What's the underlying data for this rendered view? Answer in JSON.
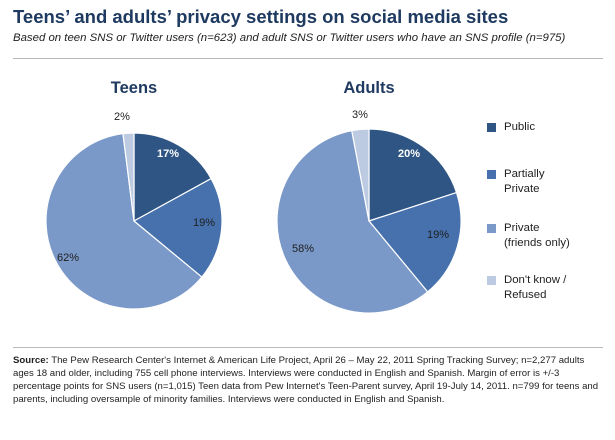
{
  "header": {
    "title": "Teens’ and adults’ privacy settings on social media sites",
    "subtitle": "Based on teen SNS or Twitter users (n=623) and adult SNS or Twitter users who have an SNS profile (n=975)"
  },
  "source": {
    "label": "Source:",
    "text": "The Pew Research Center's Internet & American Life Project, April 26 – May 22, 2011 Spring Tracking Survey; n=2,277 adults ages 18 and older, including 755 cell phone interviews. Interviews were conducted in English and Spanish. Margin of error is +/-3 percentage points for SNS users (n=1,015) Teen data from Pew Internet's Teen-Parent survey, April 19-July 14, 2011. n=799 for teens and parents, including oversample of minority families. Interviews were conducted in English and Spanish."
  },
  "chart_data": [
    {
      "type": "pie",
      "title": "Teens",
      "categories": [
        "Public",
        "Partially Private",
        "Private (friends only)",
        "Don't know / Refused"
      ],
      "values": [
        17,
        19,
        62,
        2
      ],
      "labels": [
        "17%",
        "19%",
        "62%",
        "2%"
      ]
    },
    {
      "type": "pie",
      "title": "Adults",
      "categories": [
        "Public",
        "Partially Private",
        "Private (friends only)",
        "Don't know / Refused"
      ],
      "values": [
        20,
        19,
        58,
        3
      ],
      "labels": [
        "20%",
        "19%",
        "58%",
        "3%"
      ]
    }
  ],
  "legend": {
    "placement": "right",
    "items": [
      {
        "label": "Public",
        "color": "#2e5584"
      },
      {
        "label": "Partially\nPrivate",
        "color": "#4671ad"
      },
      {
        "label": "Private\n(friends only)",
        "color": "#7a99c8"
      },
      {
        "label": "Don't know /\nRefused",
        "color": "#bccbe2"
      }
    ]
  },
  "colors": {
    "slices": [
      "#2e5584",
      "#4671ad",
      "#7a99c8",
      "#bccbe2"
    ],
    "label_light": "#ffffff",
    "label_dark": "#1f1f1f"
  }
}
